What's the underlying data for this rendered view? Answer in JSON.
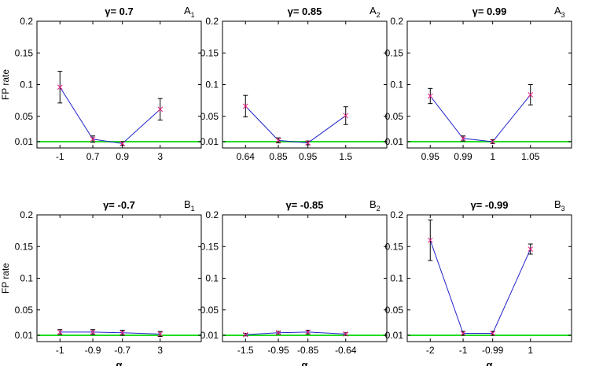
{
  "chart_data": [
    {
      "type": "line",
      "title": "γ= 0.7",
      "panel_label": "A",
      "panel_sub": "1",
      "ylabel": "FP rate",
      "xlabel": "",
      "x_tick_labels": [
        "-1",
        "0.7",
        "0.9",
        "3"
      ],
      "y_tick_labels": [
        "0.01",
        "0.05",
        "0.1",
        "0.15",
        "0.2"
      ],
      "y_ticks": [
        0.01,
        0.05,
        0.1,
        0.15,
        0.2
      ],
      "ylim": [
        0,
        0.2
      ],
      "threshold": 0.01,
      "values": [
        0.096,
        0.014,
        0.007,
        0.061
      ],
      "errors": [
        0.025,
        0.005,
        0.003,
        0.017
      ]
    },
    {
      "type": "line",
      "title": "γ= 0.85",
      "panel_label": "A",
      "panel_sub": "2",
      "ylabel": "",
      "xlabel": "",
      "x_tick_labels": [
        "0.64",
        "0.85",
        "0.95",
        "1.5"
      ],
      "y_tick_labels": [
        "0.01",
        "0.05",
        "0.1",
        "0.15",
        "0.2"
      ],
      "y_ticks": [
        0.01,
        0.05,
        0.1,
        0.15,
        0.2
      ],
      "ylim": [
        0,
        0.2
      ],
      "threshold": 0.01,
      "values": [
        0.066,
        0.012,
        0.008,
        0.051
      ],
      "errors": [
        0.017,
        0.004,
        0.003,
        0.014
      ]
    },
    {
      "type": "line",
      "title": "γ= 0.99",
      "panel_label": "A",
      "panel_sub": "3",
      "ylabel": "",
      "xlabel": "",
      "x_tick_labels": [
        "0.95",
        "0.99",
        "1",
        "1.05"
      ],
      "y_tick_labels": [
        "0.01",
        "0.05",
        "0.1",
        "0.15",
        "0.2"
      ],
      "y_ticks": [
        0.01,
        0.05,
        0.1,
        0.15,
        0.2
      ],
      "ylim": [
        0,
        0.2
      ],
      "threshold": 0.01,
      "values": [
        0.082,
        0.015,
        0.01,
        0.084
      ],
      "errors": [
        0.012,
        0.004,
        0.003,
        0.016
      ]
    },
    {
      "type": "line",
      "title": "γ= -0.7",
      "panel_label": "B",
      "panel_sub": "1",
      "ylabel": "FP rate",
      "xlabel": "α",
      "x_tick_labels": [
        "-1",
        "-0.9",
        "-0.7",
        "3"
      ],
      "y_tick_labels": [
        "0.01",
        "0.05",
        "0.1",
        "0.15",
        "0.2"
      ],
      "y_ticks": [
        0.01,
        0.05,
        0.1,
        0.15,
        0.2
      ],
      "ylim": [
        0,
        0.2
      ],
      "threshold": 0.01,
      "values": [
        0.015,
        0.015,
        0.014,
        0.012
      ],
      "errors": [
        0.004,
        0.004,
        0.004,
        0.004
      ]
    },
    {
      "type": "line",
      "title": "γ= -0.85",
      "panel_label": "B",
      "panel_sub": "2",
      "ylabel": "",
      "xlabel": "α",
      "x_tick_labels": [
        "-1.5",
        "-0.95",
        "-0.85",
        "-0.64"
      ],
      "y_tick_labels": [
        "0.01",
        "0.05",
        "0.1",
        "0.15",
        "0.2"
      ],
      "y_ticks": [
        0.01,
        0.05,
        0.1,
        0.15,
        0.2
      ],
      "ylim": [
        0,
        0.2
      ],
      "threshold": 0.01,
      "values": [
        0.011,
        0.014,
        0.015,
        0.012
      ],
      "errors": [
        0.002,
        0.002,
        0.003,
        0.002
      ]
    },
    {
      "type": "line",
      "title": "γ= -0.99",
      "panel_label": "B",
      "panel_sub": "3",
      "ylabel": "",
      "xlabel": "α",
      "x_tick_labels": [
        "-2",
        "-1",
        "-0.99",
        "1"
      ],
      "y_tick_labels": [
        "0.01",
        "0.05",
        "0.1",
        "0.15",
        "0.2"
      ],
      "y_ticks": [
        0.01,
        0.05,
        0.1,
        0.15,
        0.2
      ],
      "ylim": [
        0,
        0.2
      ],
      "threshold": 0.01,
      "values": [
        0.16,
        0.013,
        0.013,
        0.146
      ],
      "errors": [
        0.032,
        0.003,
        0.003,
        0.008
      ]
    }
  ],
  "colors": {
    "line": "#2222cc",
    "marker": "#ee2288",
    "errorbar": "#000000",
    "threshold": "#22dd22",
    "axis": "#000000"
  }
}
